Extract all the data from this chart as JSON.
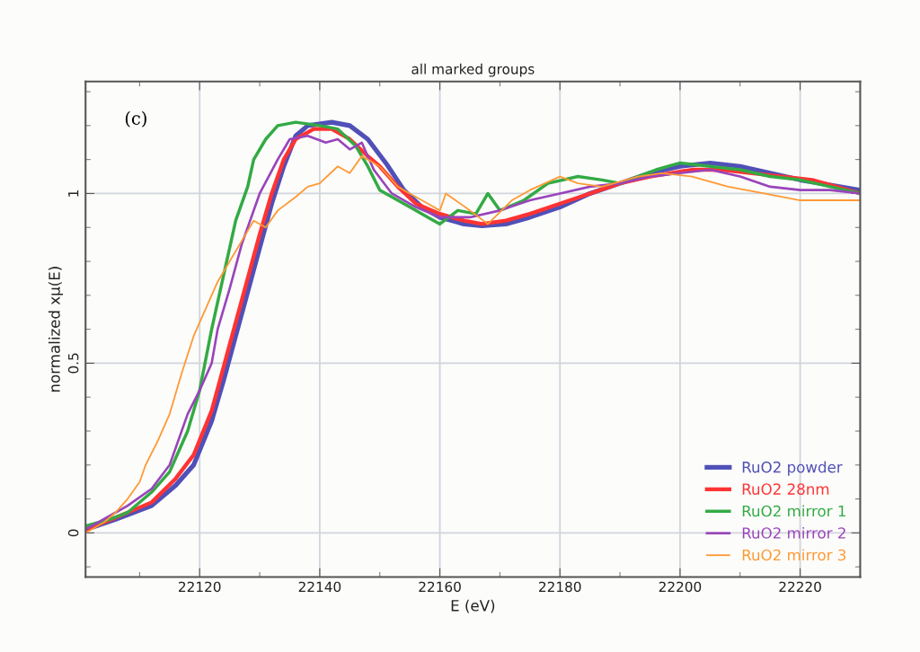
{
  "chart_data": {
    "type": "line",
    "title": "all marked groups",
    "xlabel": "E (eV)",
    "ylabel": "normalized xμ(E)",
    "annotations": [
      "(c)"
    ],
    "xlim": [
      22101,
      22230
    ],
    "xticks": [
      22120,
      22140,
      22160,
      22180,
      22200,
      22220
    ],
    "ylim": [
      -0.13,
      1.33
    ],
    "yticks": [
      0,
      0.5,
      1
    ],
    "grid": true,
    "legend": "lower right",
    "marker": "none",
    "line_style": "solid",
    "series": [
      {
        "name": "RuO2 powder",
        "color": "#5050b8",
        "x": [
          22101,
          22106,
          22112,
          22116,
          22119,
          22122,
          22124,
          22126,
          22128,
          22130,
          22132,
          22134,
          22136,
          22138,
          22142,
          22145,
          22148,
          22151,
          22154,
          22157,
          22160,
          22164,
          22167,
          22171,
          22175,
          22180,
          22185,
          22190,
          22195,
          22200,
          22205,
          22210,
          22215,
          22220,
          22225,
          22230
        ],
        "values": [
          0.01,
          0.04,
          0.08,
          0.14,
          0.2,
          0.33,
          0.45,
          0.58,
          0.71,
          0.84,
          0.97,
          1.08,
          1.17,
          1.2,
          1.21,
          1.2,
          1.16,
          1.09,
          1.01,
          0.96,
          0.93,
          0.91,
          0.905,
          0.91,
          0.93,
          0.96,
          1.0,
          1.03,
          1.06,
          1.08,
          1.09,
          1.08,
          1.06,
          1.04,
          1.025,
          1.01
        ]
      },
      {
        "name": "RuO2 28nm",
        "color": "#ff3333",
        "x": [
          22101,
          22106,
          22112,
          22116,
          22119,
          22122,
          22124,
          22126,
          22128,
          22130,
          22132,
          22134,
          22136,
          22139,
          22142,
          22145,
          22148,
          22150,
          22153,
          22156,
          22160,
          22164,
          22167,
          22171,
          22175,
          22180,
          22185,
          22190,
          22195,
          22202,
          22207,
          22212,
          22217,
          22222,
          22226,
          22230
        ],
        "values": [
          0.01,
          0.045,
          0.09,
          0.16,
          0.23,
          0.36,
          0.49,
          0.62,
          0.75,
          0.88,
          1.0,
          1.1,
          1.16,
          1.19,
          1.19,
          1.16,
          1.11,
          1.08,
          1.02,
          0.97,
          0.94,
          0.92,
          0.91,
          0.92,
          0.94,
          0.97,
          1.0,
          1.03,
          1.05,
          1.07,
          1.07,
          1.06,
          1.05,
          1.04,
          1.02,
          1.0
        ]
      },
      {
        "name": "RuO2 mirror 1",
        "color": "#33aa44",
        "x": [
          22101,
          22105,
          22108,
          22112,
          22115,
          22118,
          22120,
          22122,
          22124,
          22126,
          22128,
          22129,
          22131,
          22133,
          22136,
          22140,
          22143,
          22146,
          22148,
          22150,
          22152,
          22155,
          22158,
          22160,
          22163,
          22166,
          22168,
          22170,
          22174,
          22178,
          22183,
          22187,
          22190,
          22196,
          22200,
          22205,
          22210,
          22215,
          22220,
          22225,
          22230
        ],
        "values": [
          0.02,
          0.04,
          0.06,
          0.12,
          0.18,
          0.3,
          0.42,
          0.6,
          0.76,
          0.92,
          1.02,
          1.1,
          1.16,
          1.2,
          1.21,
          1.2,
          1.19,
          1.14,
          1.08,
          1.01,
          0.99,
          0.96,
          0.93,
          0.91,
          0.95,
          0.94,
          1.0,
          0.95,
          0.98,
          1.03,
          1.05,
          1.04,
          1.03,
          1.07,
          1.09,
          1.08,
          1.07,
          1.05,
          1.04,
          1.02,
          1.0
        ]
      },
      {
        "name": "RuO2 mirror 2",
        "color": "#9944bb",
        "x": [
          22101,
          22105,
          22108,
          22112,
          22115,
          22118,
          22120,
          22122,
          22123,
          22125,
          22127,
          22130,
          22133,
          22135,
          22138,
          22141,
          22143,
          22145,
          22147,
          22149,
          22152,
          22156,
          22160,
          22165,
          22170,
          22175,
          22180,
          22185,
          22190,
          22195,
          22200,
          22205,
          22210,
          22215,
          22220,
          22225,
          22230
        ],
        "values": [
          0.01,
          0.05,
          0.08,
          0.13,
          0.2,
          0.35,
          0.42,
          0.5,
          0.6,
          0.72,
          0.85,
          1.0,
          1.1,
          1.16,
          1.17,
          1.15,
          1.16,
          1.13,
          1.15,
          1.07,
          1.0,
          0.96,
          0.93,
          0.93,
          0.95,
          0.98,
          1.0,
          1.02,
          1.03,
          1.05,
          1.06,
          1.07,
          1.05,
          1.02,
          1.01,
          1.01,
          1.0
        ]
      },
      {
        "name": "RuO2 mirror 3",
        "color": "#ff9933",
        "x": [
          22101,
          22104,
          22106,
          22108,
          22110,
          22111,
          22113,
          22115,
          22117,
          22119,
          22121,
          22123,
          22125,
          22127,
          22129,
          22131,
          22133,
          22136,
          22138,
          22140,
          22143,
          22145,
          22147,
          22150,
          22153,
          22155,
          22158,
          22160,
          22161,
          22165,
          22168,
          22172,
          22175,
          22180,
          22183,
          22187,
          22193,
          22197,
          22202,
          22208,
          22214,
          22220,
          22225,
          22230
        ],
        "values": [
          0.0,
          0.03,
          0.06,
          0.1,
          0.15,
          0.2,
          0.27,
          0.35,
          0.47,
          0.58,
          0.66,
          0.74,
          0.8,
          0.86,
          0.92,
          0.9,
          0.95,
          0.99,
          1.02,
          1.03,
          1.08,
          1.06,
          1.11,
          1.08,
          1.02,
          1.0,
          0.97,
          0.95,
          1.0,
          0.95,
          0.91,
          0.98,
          1.01,
          1.05,
          1.03,
          1.02,
          1.05,
          1.06,
          1.05,
          1.02,
          1.0,
          0.98,
          0.98,
          0.98
        ]
      }
    ]
  }
}
